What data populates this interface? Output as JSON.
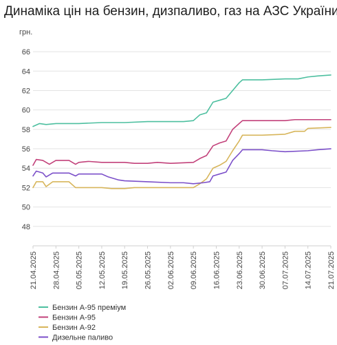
{
  "chart_data": {
    "type": "line",
    "title": "Динаміка цін на бензин, дизпаливо, газ на АЗС України",
    "y_unit": "грн.",
    "ylim": [
      46,
      67
    ],
    "y_ticks": [
      48,
      50,
      52,
      54,
      56,
      58,
      60,
      62,
      64,
      66
    ],
    "x_start": "21.04.2025",
    "x_end": "21.07.2025",
    "x_ticks": [
      "21.04.2025",
      "28.04.2025",
      "05.05.2025",
      "12.05.2025",
      "19.05.2025",
      "26.05.2025",
      "02.06.2025",
      "09.06.2025",
      "16.06.2025",
      "23.06.2025",
      "30.06.2025",
      "07.07.2025",
      "14.07.2025",
      "21.07.2025"
    ],
    "grid": "horizontal",
    "legend_position": "bottom-left",
    "series": [
      {
        "name": "Бензин А-95 преміум",
        "color": "#4cbf9f",
        "points": [
          [
            "21.04.2025",
            58.3
          ],
          [
            "23.04.2025",
            58.6
          ],
          [
            "25.04.2025",
            58.5
          ],
          [
            "28.04.2025",
            58.6
          ],
          [
            "05.05.2025",
            58.6
          ],
          [
            "12.05.2025",
            58.7
          ],
          [
            "19.05.2025",
            58.7
          ],
          [
            "26.05.2025",
            58.8
          ],
          [
            "02.06.2025",
            58.8
          ],
          [
            "06.06.2025",
            58.8
          ],
          [
            "09.06.2025",
            58.9
          ],
          [
            "11.06.2025",
            59.5
          ],
          [
            "13.06.2025",
            59.7
          ],
          [
            "15.06.2025",
            60.8
          ],
          [
            "17.06.2025",
            61.0
          ],
          [
            "19.06.2025",
            61.2
          ],
          [
            "21.06.2025",
            62.0
          ],
          [
            "23.06.2025",
            62.8
          ],
          [
            "24.06.2025",
            63.1
          ],
          [
            "30.06.2025",
            63.1
          ],
          [
            "07.07.2025",
            63.2
          ],
          [
            "11.07.2025",
            63.2
          ],
          [
            "14.07.2025",
            63.4
          ],
          [
            "17.07.2025",
            63.5
          ],
          [
            "21.07.2025",
            63.6
          ]
        ]
      },
      {
        "name": "Бензин А-95",
        "color": "#c2417a",
        "points": [
          [
            "21.04.2025",
            54.3
          ],
          [
            "22.04.2025",
            54.9
          ],
          [
            "24.04.2025",
            54.8
          ],
          [
            "26.04.2025",
            54.4
          ],
          [
            "28.04.2025",
            54.8
          ],
          [
            "02.05.2025",
            54.8
          ],
          [
            "04.05.2025",
            54.4
          ],
          [
            "05.05.2025",
            54.6
          ],
          [
            "08.05.2025",
            54.7
          ],
          [
            "12.05.2025",
            54.6
          ],
          [
            "19.05.2025",
            54.6
          ],
          [
            "22.05.2025",
            54.5
          ],
          [
            "26.05.2025",
            54.5
          ],
          [
            "29.05.2025",
            54.6
          ],
          [
            "02.06.2025",
            54.5
          ],
          [
            "09.06.2025",
            54.6
          ],
          [
            "11.06.2025",
            55.0
          ],
          [
            "13.06.2025",
            55.3
          ],
          [
            "15.06.2025",
            56.3
          ],
          [
            "17.06.2025",
            56.6
          ],
          [
            "19.06.2025",
            56.8
          ],
          [
            "21.06.2025",
            58.0
          ],
          [
            "23.06.2025",
            58.6
          ],
          [
            "24.06.2025",
            58.9
          ],
          [
            "30.06.2025",
            58.9
          ],
          [
            "07.07.2025",
            58.9
          ],
          [
            "10.07.2025",
            59.0
          ],
          [
            "21.07.2025",
            59.0
          ]
        ]
      },
      {
        "name": "Бензин А-92",
        "color": "#d7b55a",
        "points": [
          [
            "21.04.2025",
            52.0
          ],
          [
            "22.04.2025",
            52.6
          ],
          [
            "24.04.2025",
            52.6
          ],
          [
            "25.04.2025",
            52.1
          ],
          [
            "27.04.2025",
            52.6
          ],
          [
            "02.05.2025",
            52.6
          ],
          [
            "04.05.2025",
            52.0
          ],
          [
            "12.05.2025",
            52.0
          ],
          [
            "15.05.2025",
            51.9
          ],
          [
            "19.05.2025",
            51.9
          ],
          [
            "22.05.2025",
            52.0
          ],
          [
            "26.05.2025",
            52.0
          ],
          [
            "02.06.2025",
            52.0
          ],
          [
            "09.06.2025",
            52.0
          ],
          [
            "11.06.2025",
            52.4
          ],
          [
            "13.06.2025",
            52.9
          ],
          [
            "15.06.2025",
            54.0
          ],
          [
            "17.06.2025",
            54.3
          ],
          [
            "19.06.2025",
            54.7
          ],
          [
            "21.06.2025",
            55.8
          ],
          [
            "23.06.2025",
            56.8
          ],
          [
            "24.06.2025",
            57.4
          ],
          [
            "30.06.2025",
            57.4
          ],
          [
            "07.07.2025",
            57.5
          ],
          [
            "10.07.2025",
            57.8
          ],
          [
            "13.07.2025",
            57.8
          ],
          [
            "14.07.2025",
            58.1
          ],
          [
            "21.07.2025",
            58.2
          ]
        ]
      },
      {
        "name": "Дизельне паливо",
        "color": "#7b4fc9",
        "points": [
          [
            "21.04.2025",
            53.2
          ],
          [
            "22.04.2025",
            53.7
          ],
          [
            "24.04.2025",
            53.5
          ],
          [
            "25.04.2025",
            53.1
          ],
          [
            "27.04.2025",
            53.5
          ],
          [
            "02.05.2025",
            53.5
          ],
          [
            "04.05.2025",
            53.2
          ],
          [
            "05.05.2025",
            53.4
          ],
          [
            "12.05.2025",
            53.4
          ],
          [
            "14.05.2025",
            53.1
          ],
          [
            "17.05.2025",
            52.8
          ],
          [
            "19.05.2025",
            52.7
          ],
          [
            "26.05.2025",
            52.6
          ],
          [
            "02.06.2025",
            52.5
          ],
          [
            "06.06.2025",
            52.5
          ],
          [
            "09.06.2025",
            52.4
          ],
          [
            "12.06.2025",
            52.5
          ],
          [
            "14.06.2025",
            52.6
          ],
          [
            "15.06.2025",
            53.2
          ],
          [
            "17.06.2025",
            53.4
          ],
          [
            "19.06.2025",
            53.6
          ],
          [
            "21.06.2025",
            54.8
          ],
          [
            "23.06.2025",
            55.5
          ],
          [
            "24.06.2025",
            55.9
          ],
          [
            "30.06.2025",
            55.9
          ],
          [
            "03.07.2025",
            55.8
          ],
          [
            "07.07.2025",
            55.7
          ],
          [
            "14.07.2025",
            55.8
          ],
          [
            "17.07.2025",
            55.9
          ],
          [
            "21.07.2025",
            56.0
          ]
        ]
      }
    ]
  }
}
